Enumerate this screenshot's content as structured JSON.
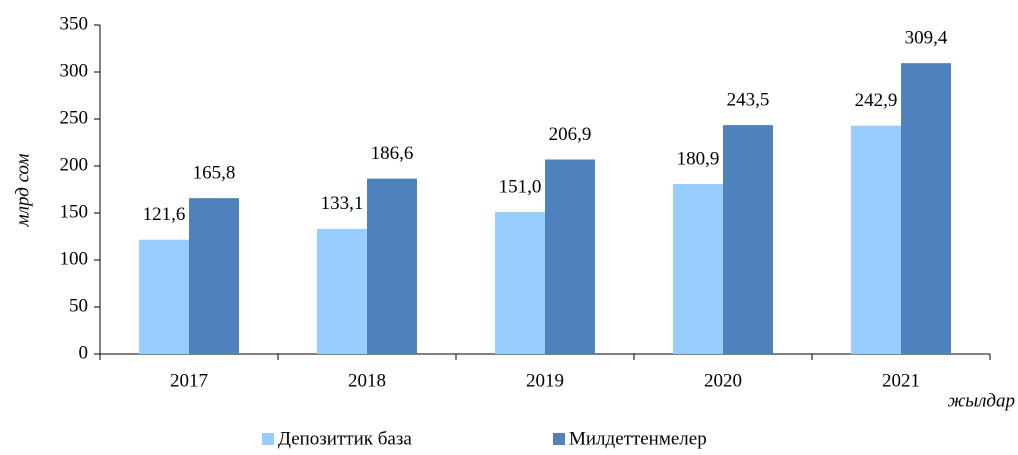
{
  "chart_data": {
    "type": "bar",
    "categories": [
      "2017",
      "2018",
      "2019",
      "2020",
      "2021"
    ],
    "series": [
      {
        "name": "Депозиттик база",
        "color": "#99ccff",
        "values": [
          121.6,
          133.1,
          151.0,
          180.9,
          242.9
        ],
        "value_labels": [
          "121,6",
          "133,1",
          "151,0",
          "180,9",
          "242,9"
        ]
      },
      {
        "name": "Милдеттенмелер",
        "color": "#4f81bd",
        "values": [
          165.8,
          186.6,
          206.9,
          243.5,
          309.4
        ],
        "value_labels": [
          "165,8",
          "186,6",
          "206,9",
          "243,5",
          "309,4"
        ]
      }
    ],
    "ylabel": "млрд сом",
    "xlabel": "жылдар",
    "ylim": [
      0,
      350
    ],
    "yticks": [
      0,
      50,
      100,
      150,
      200,
      250,
      300,
      350
    ],
    "grid": false,
    "legend": "bottom"
  }
}
